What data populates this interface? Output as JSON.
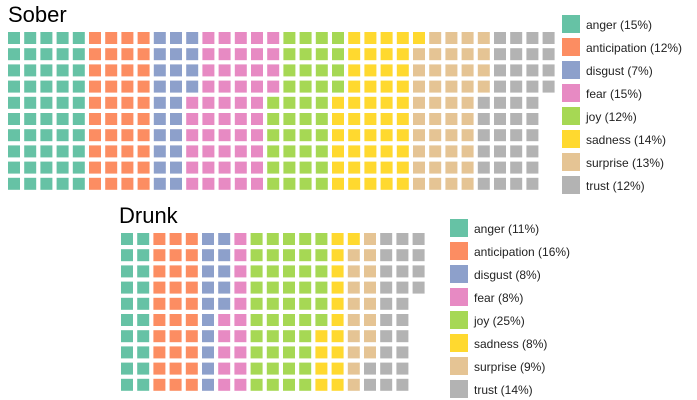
{
  "chart_data": [
    {
      "type": "waffle",
      "title": "Sober",
      "legend_placement": "right",
      "categories": [
        "anger",
        "anticipation",
        "disgust",
        "fear",
        "joy",
        "sadness",
        "surprise",
        "trust"
      ],
      "legend_labels": [
        "anger (15%)",
        "anticipation (12%)",
        "disgust (7%)",
        "fear (15%)",
        "joy (12%)",
        "sadness (14%)",
        "surprise (13%)",
        "trust (12%)"
      ],
      "percent": [
        15,
        12,
        7,
        15,
        12,
        14,
        13,
        12
      ],
      "counts": [
        50,
        40,
        24,
        50,
        40,
        47,
        43,
        40
      ],
      "rows": 10
    },
    {
      "type": "waffle",
      "title": "Drunk",
      "legend_placement": "right",
      "categories": [
        "anger",
        "anticipation",
        "disgust",
        "fear",
        "joy",
        "sadness",
        "surprise",
        "trust"
      ],
      "legend_labels": [
        "anger (11%)",
        "anticipation (16%)",
        "disgust (8%)",
        "fear (8%)",
        "joy (25%)",
        "sadness (8%)",
        "surprise (9%)",
        "trust (14%)"
      ],
      "percent": [
        11,
        16,
        8,
        8,
        25,
        8,
        9,
        14
      ],
      "counts": [
        20,
        30,
        15,
        15,
        46,
        15,
        17,
        26
      ],
      "rows": 10
    }
  ],
  "colors": [
    "#66c2a5",
    "#fc8d62",
    "#8da0cb",
    "#e78ac3",
    "#a6d854",
    "#ffd92f",
    "#e5c494",
    "#b3b3b3"
  ]
}
